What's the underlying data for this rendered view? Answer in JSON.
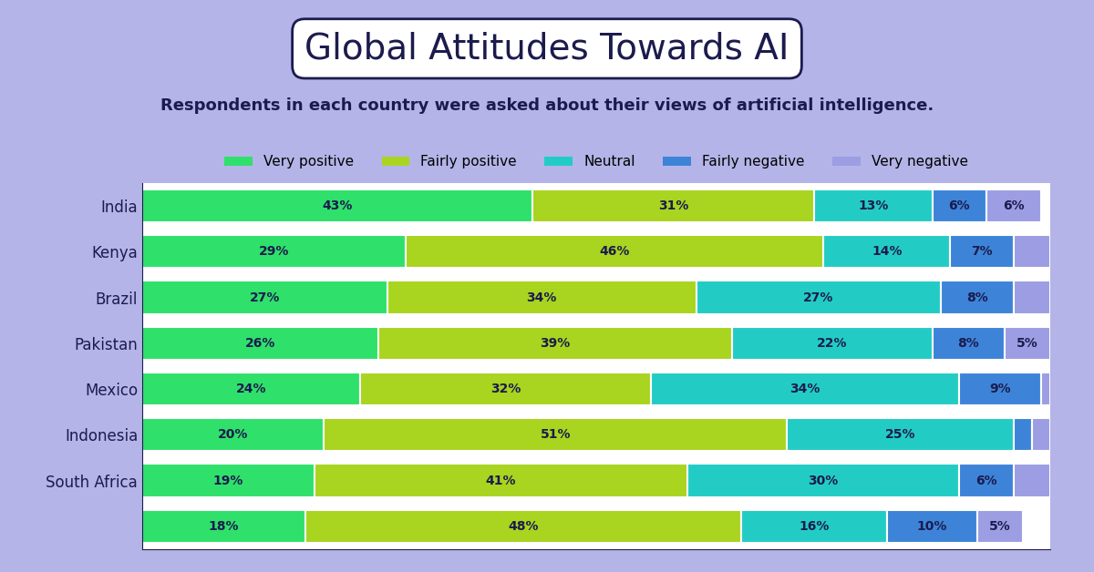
{
  "chart_data": {
    "type": "bar",
    "title": "Global Attitudes Towards AI",
    "subtitle": "Respondents in each country were asked about their views of artificial intelligence.",
    "orientation": "horizontal",
    "stacked": true,
    "data_labels": true,
    "tick_labels": "y",
    "legend": "upper center",
    "grid": false,
    "categories": [
      "India",
      "Kenya",
      "Brazil",
      "Pakistan",
      "Mexico",
      "Indonesia",
      "South Africa",
      null
    ],
    "xlim": [
      0,
      100
    ],
    "xticks": [],
    "series": [
      {
        "name": "Very positive",
        "color": "#2fe06b",
        "values": [
          43,
          29,
          27,
          26,
          24,
          20,
          19,
          18
        ],
        "value_labels": [
          "43%",
          "29%",
          "27%",
          "26%",
          "24%",
          "20%",
          "19%",
          "18%"
        ]
      },
      {
        "name": "Fairly positive",
        "color": "#a9d41f",
        "values": [
          31,
          46,
          34,
          39,
          32,
          51,
          41,
          48
        ],
        "value_labels": [
          "31%",
          "46%",
          "34%",
          "39%",
          "32%",
          "51%",
          "41%",
          "48%"
        ]
      },
      {
        "name": "Neutral",
        "color": "#22ccc4",
        "values": [
          13,
          14,
          27,
          22,
          34,
          25,
          30,
          16
        ],
        "value_labels": [
          "13%",
          "14%",
          "27%",
          "22%",
          "34%",
          "25%",
          "30%",
          "16%"
        ]
      },
      {
        "name": "Fairly negative",
        "color": "#3d84d8",
        "values": [
          6,
          7,
          8,
          8,
          9,
          2,
          6,
          10
        ],
        "value_labels": [
          "6%",
          "7%",
          "8%",
          "8%",
          "9%",
          null,
          "6%",
          "10%"
        ]
      },
      {
        "name": "Very negative",
        "color": "#9c9de2",
        "values": [
          6,
          4,
          4,
          5,
          1,
          2,
          4,
          5
        ],
        "value_labels": [
          "6%",
          null,
          null,
          "5%",
          null,
          null,
          null,
          "5%"
        ]
      }
    ]
  }
}
